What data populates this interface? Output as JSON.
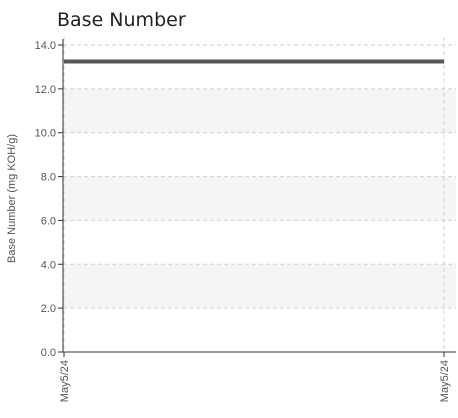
{
  "chart_data": {
    "type": "line",
    "title": "Base Number",
    "xlabel": "",
    "ylabel": "Base Number (mg KOH/g)",
    "ylim": [
      0,
      14
    ],
    "yticks": [
      0,
      2,
      4,
      6,
      8,
      10,
      12,
      14
    ],
    "ytick_labels": [
      "0.0",
      "2.0",
      "4.0",
      "6.0",
      "8.0",
      "10.0",
      "12.0",
      "14.0"
    ],
    "x_categories": [
      "May5/24",
      "May5/24"
    ],
    "series": [
      {
        "values": [
          13.25,
          13.25
        ],
        "color": "#555555"
      }
    ],
    "grid": true,
    "band_color": "#f5f5f5",
    "grid_color": "#d0d0d0",
    "axis_color": "#333333"
  }
}
